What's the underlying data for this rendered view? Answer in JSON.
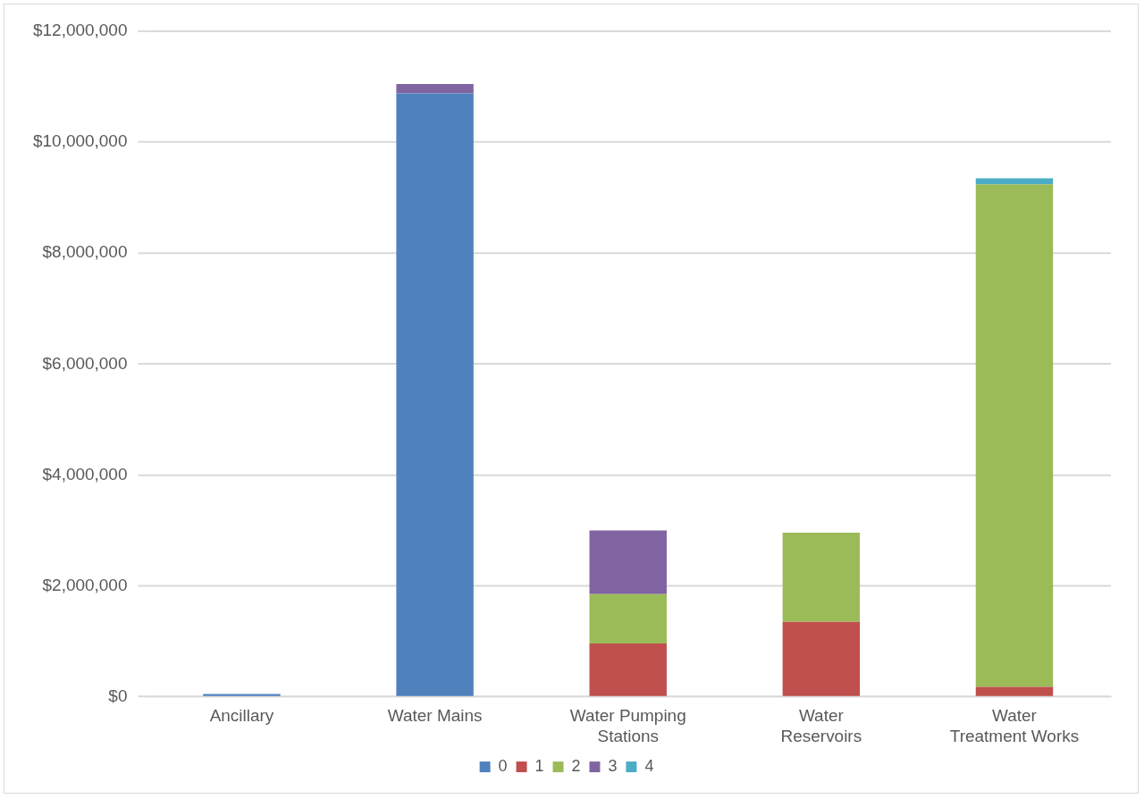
{
  "chart_data": {
    "type": "bar",
    "stacked": true,
    "categories": [
      "Ancillary",
      "Water Mains",
      "Water Pumping Stations",
      "Water Reservoirs",
      "Water Treatment Works"
    ],
    "series": [
      {
        "name": "0",
        "color": "#4f81bd",
        "values": [
          50000,
          10880000,
          null,
          null,
          null
        ]
      },
      {
        "name": "1",
        "color": "#c0504d",
        "values": [
          null,
          null,
          960000,
          1350000,
          180000
        ]
      },
      {
        "name": "2",
        "color": "#9bbb59",
        "values": [
          null,
          null,
          890000,
          1610000,
          9060000
        ]
      },
      {
        "name": "3",
        "color": "#8064a2",
        "values": [
          null,
          170000,
          1150000,
          null,
          null
        ]
      },
      {
        "name": "4",
        "color": "#4bacc6",
        "values": [
          null,
          null,
          null,
          null,
          110000
        ]
      }
    ],
    "ylim": [
      0,
      12000000
    ],
    "yticks": [
      {
        "value": 0,
        "label": "$0"
      },
      {
        "value": 2000000,
        "label": "$2,000,000"
      },
      {
        "value": 4000000,
        "label": "$4,000,000"
      },
      {
        "value": 6000000,
        "label": "$6,000,000"
      },
      {
        "value": 8000000,
        "label": "$8,000,000"
      },
      {
        "value": 10000000,
        "label": "$10,000,000"
      },
      {
        "value": 12000000,
        "label": "$12,000,000"
      }
    ],
    "grid": "y",
    "legend": "bottom"
  }
}
